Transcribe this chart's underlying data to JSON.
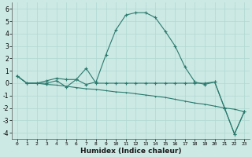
{
  "xlabel": "Humidex (Indice chaleur)",
  "ylabel": "",
  "bg_color": "#cce9e4",
  "grid_color": "#b0d8d2",
  "line_color": "#2b7a6e",
  "xlim": [
    -0.5,
    23.5
  ],
  "ylim": [
    -4.5,
    6.5
  ],
  "yticks": [
    -4,
    -3,
    -2,
    -1,
    0,
    1,
    2,
    3,
    4,
    5,
    6
  ],
  "xticks": [
    0,
    1,
    2,
    3,
    4,
    5,
    6,
    7,
    8,
    9,
    10,
    11,
    12,
    13,
    14,
    15,
    16,
    17,
    18,
    19,
    20,
    21,
    22,
    23
  ],
  "line1_x": [
    0,
    1,
    2,
    3,
    4,
    5,
    6,
    7,
    8,
    9,
    10,
    11,
    12,
    13,
    14,
    15,
    16,
    17,
    18,
    19,
    20,
    21,
    22,
    23
  ],
  "line1_y": [
    0.6,
    0.0,
    0.0,
    0.2,
    0.4,
    0.3,
    0.3,
    -0.1,
    0.1,
    2.3,
    4.3,
    5.5,
    5.7,
    5.7,
    5.3,
    4.2,
    3.0,
    1.3,
    0.1,
    -0.1,
    0.1,
    -2.0,
    -4.1,
    -2.3
  ],
  "line2_x": [
    0,
    1,
    2,
    3,
    4,
    5,
    6,
    7,
    8,
    9,
    10,
    11,
    12,
    13,
    14,
    15,
    16,
    17,
    18,
    19,
    20,
    21,
    22,
    23
  ],
  "line2_y": [
    0.6,
    0.0,
    0.0,
    -0.1,
    -0.15,
    -0.25,
    -0.35,
    -0.45,
    -0.5,
    -0.6,
    -0.7,
    -0.75,
    -0.85,
    -0.95,
    -1.05,
    -1.15,
    -1.3,
    -1.45,
    -1.6,
    -1.7,
    -1.85,
    -2.0,
    -2.1,
    -2.3
  ],
  "line3_x": [
    0,
    1,
    2,
    3,
    4,
    5,
    6,
    7,
    8,
    9,
    10,
    11,
    12,
    13,
    14,
    15,
    16,
    17,
    18,
    19,
    20,
    21,
    22,
    23
  ],
  "line3_y": [
    0.6,
    0.0,
    0.0,
    0.0,
    0.2,
    -0.3,
    0.3,
    1.2,
    0.0,
    0.0,
    0.0,
    0.0,
    0.0,
    0.0,
    0.0,
    0.0,
    0.0,
    0.0,
    0.0,
    0.0,
    0.1,
    -2.0,
    -4.1,
    -2.3
  ]
}
